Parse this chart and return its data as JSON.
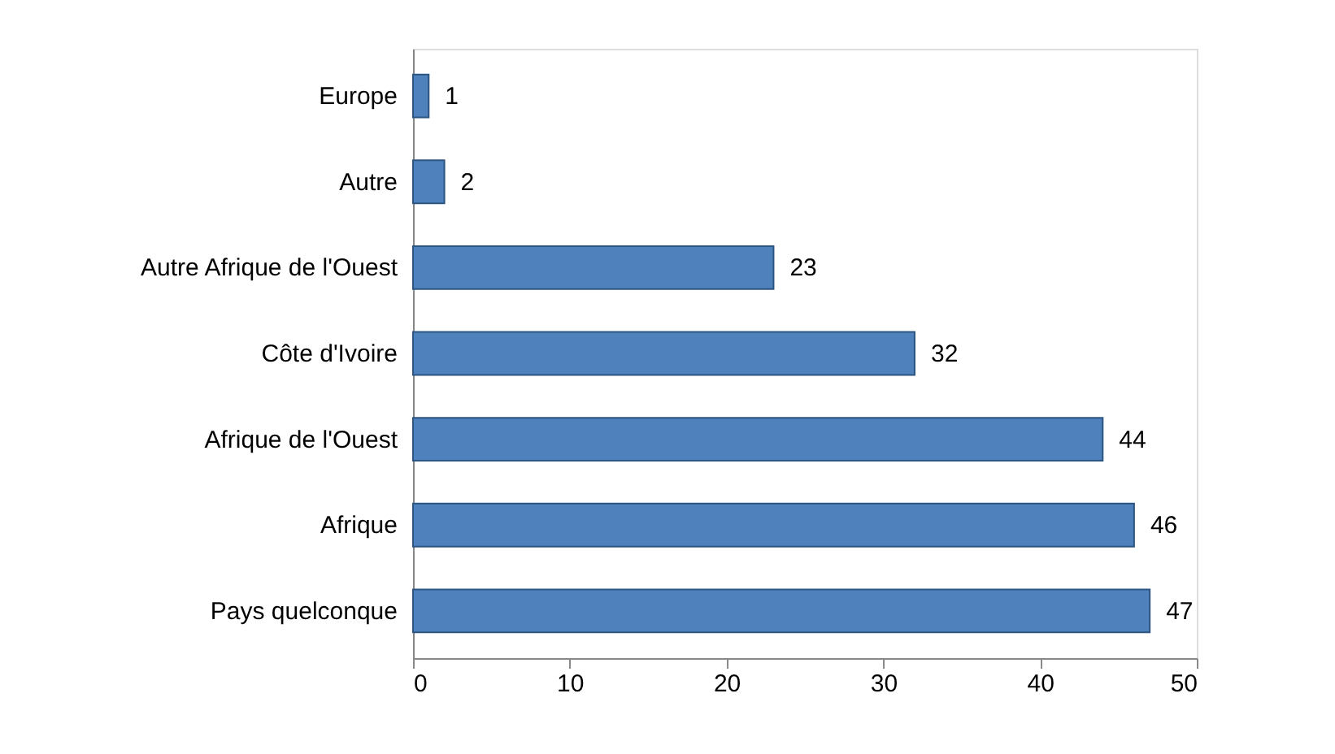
{
  "chart_data": {
    "type": "bar",
    "orientation": "horizontal",
    "categories": [
      "Europe",
      "Autre",
      "Autre Afrique de l'Ouest",
      "Côte d'Ivoire",
      "Afrique de l'Ouest",
      "Afrique",
      "Pays quelconque"
    ],
    "values": [
      1,
      2,
      23,
      32,
      44,
      46,
      47
    ],
    "color": "#4f81bd",
    "xlim": [
      0,
      50
    ],
    "xticks": [
      0,
      10,
      20,
      30,
      40,
      50
    ],
    "data_labels": true
  }
}
